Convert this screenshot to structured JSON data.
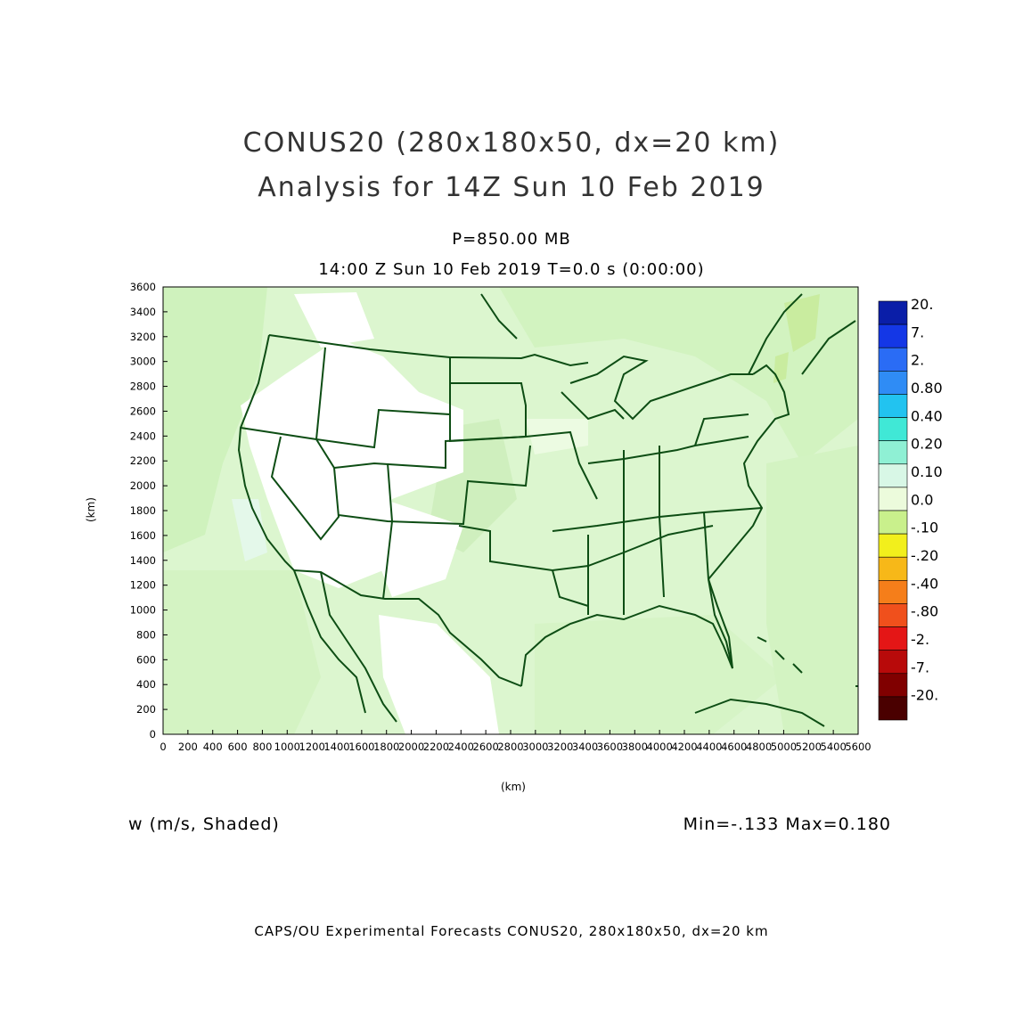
{
  "titles": {
    "line1": "CONUS20 (280x180x50, dx=20 km)",
    "line2": "Analysis for 14Z Sun 10 Feb 2019",
    "level": "P=850.00 MB",
    "time": "14:00 Z Sun 10 Feb 2019    T=0.0 s (0:00:00)"
  },
  "axes": {
    "x_label": "(km)",
    "y_label": "(km)",
    "x_ticks": [
      "0",
      "200",
      "400",
      "600",
      "800",
      "1000",
      "1200",
      "1400",
      "1600",
      "1800",
      "2000",
      "2200",
      "2400",
      "2600",
      "2800",
      "3000",
      "3200",
      "3400",
      "3600",
      "3800",
      "4000",
      "4200",
      "4400",
      "4600",
      "4800",
      "5000",
      "5200",
      "5400",
      "5600"
    ],
    "y_ticks": [
      "0",
      "200",
      "400",
      "600",
      "800",
      "1000",
      "1200",
      "1400",
      "1600",
      "1800",
      "2000",
      "2200",
      "2400",
      "2600",
      "2800",
      "3000",
      "3200",
      "3400",
      "3600"
    ],
    "x_range": [
      0,
      5600
    ],
    "y_range": [
      0,
      3600
    ]
  },
  "colorbar": {
    "labels": [
      "20.",
      "7.",
      "2.",
      "0.80",
      "0.40",
      "0.20",
      "0.10",
      "0.0",
      "-.10",
      "-.20",
      "-.40",
      "-.80",
      "-2.",
      "-7.",
      "-20."
    ],
    "colors": [
      "#0a1ea8",
      "#1437e6",
      "#2a6cf5",
      "#2f8cf5",
      "#22c3f0",
      "#40e8d6",
      "#8ff0d4",
      "#d8f7e6",
      "#ecfbdc",
      "#c9f08c",
      "#f2ef1c",
      "#f7b818",
      "#f57e1a",
      "#f0501c",
      "#e41616",
      "#b80a0a",
      "#800000",
      "#4a0000"
    ]
  },
  "annotations": {
    "variable": "w (m/s, Shaded)",
    "minmax": "Min=-.133 Max=0.180"
  },
  "footer": "CAPS/OU Experimental Forecasts  CONUS20, 280x180x50, dx=20 km",
  "map": {
    "field": "w",
    "units": "m/s",
    "min": -0.133,
    "max": 0.18,
    "border_color": "#0d4d14",
    "background_fill": "#dff7d2"
  }
}
